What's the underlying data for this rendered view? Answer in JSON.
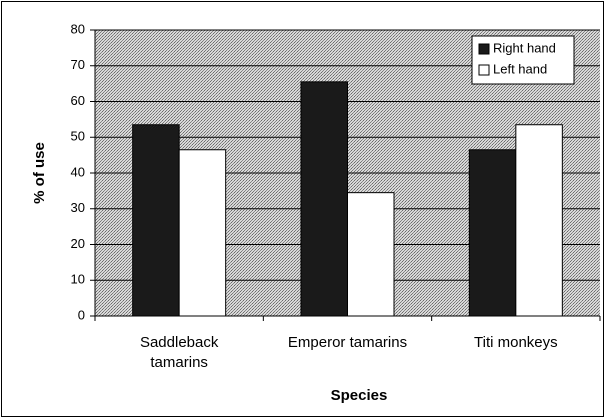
{
  "chart_data": {
    "type": "bar",
    "categories": [
      "Saddleback\ntamarins",
      "Emperor tamarins",
      "Titi monkeys"
    ],
    "series": [
      {
        "name": "Right hand",
        "color": "#1a1a1a",
        "values": [
          53.5,
          65.5,
          46.5
        ]
      },
      {
        "name": "Left hand",
        "color": "#ffffff",
        "values": [
          46.5,
          34.5,
          53.5
        ]
      }
    ],
    "x_label": "Species",
    "y_label": "% of use",
    "ylim": [
      0,
      80
    ],
    "yticks": [
      0,
      10,
      20,
      30,
      40,
      50,
      60,
      70,
      80
    ],
    "grid": true,
    "legend": "top-right"
  }
}
